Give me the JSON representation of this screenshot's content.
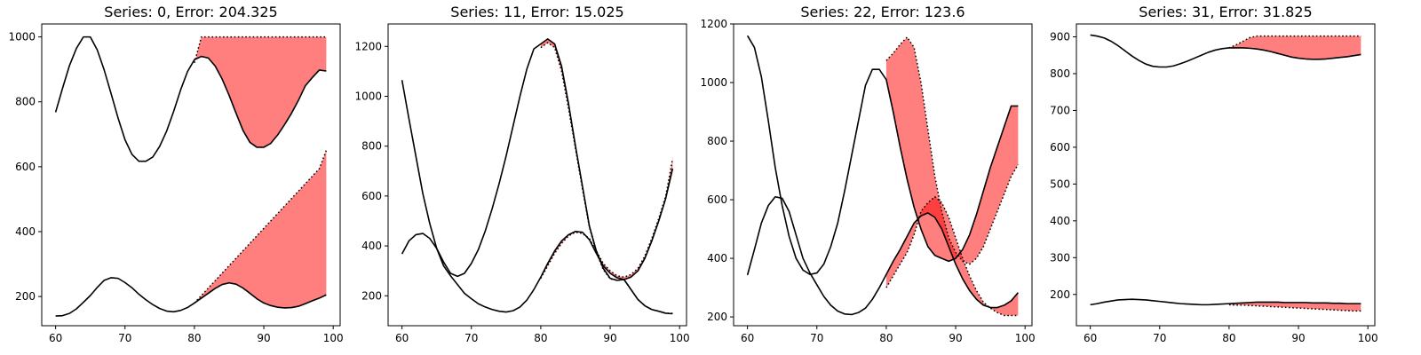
{
  "chart_data": [
    {
      "type": "line",
      "title": "Series: 0, Error: 204.325",
      "xlim": [
        58,
        101
      ],
      "ylim": [
        110,
        1040
      ],
      "xticks": [
        60,
        70,
        80,
        90,
        100
      ],
      "yticks": [
        200,
        400,
        600,
        800,
        1000
      ],
      "series": [
        {
          "style": "solid",
          "x": [
            60,
            61,
            62,
            63,
            64,
            65,
            66,
            67,
            68,
            69,
            70,
            71,
            72,
            73,
            74,
            75,
            76,
            77,
            78,
            79,
            80,
            81,
            82,
            83,
            84,
            85,
            86,
            87,
            88,
            89,
            90,
            91,
            92,
            93,
            94,
            95,
            96,
            97,
            98,
            99
          ],
          "y": [
            768,
            842,
            912,
            965,
            1000,
            1000,
            960,
            898,
            825,
            750,
            683,
            638,
            617,
            617,
            630,
            663,
            710,
            770,
            836,
            893,
            930,
            940,
            935,
            910,
            870,
            820,
            765,
            712,
            675,
            660,
            660,
            672,
            698,
            730,
            765,
            805,
            850,
            875,
            898,
            895
          ]
        },
        {
          "style": "dotted",
          "x": [
            80,
            81,
            82,
            83,
            84,
            85,
            86,
            87,
            88,
            89,
            90,
            91,
            92,
            93,
            94,
            95,
            96,
            97,
            98,
            99
          ],
          "y": [
            920,
            1000,
            1000,
            1000,
            1000,
            1000,
            1000,
            1000,
            1000,
            1000,
            1000,
            1000,
            1000,
            1000,
            1000,
            1000,
            1000,
            1000,
            1000,
            1000
          ]
        },
        {
          "style": "solid",
          "x": [
            60,
            61,
            62,
            63,
            64,
            65,
            66,
            67,
            68,
            69,
            70,
            71,
            72,
            73,
            74,
            75,
            76,
            77,
            78,
            79,
            80,
            81,
            82,
            83,
            84,
            85,
            86,
            87,
            88,
            89,
            90,
            91,
            92,
            93,
            94,
            95,
            96,
            97,
            98,
            99
          ],
          "y": [
            140,
            141,
            148,
            162,
            182,
            203,
            228,
            250,
            258,
            256,
            243,
            227,
            207,
            190,
            175,
            163,
            155,
            153,
            157,
            166,
            180,
            195,
            210,
            225,
            237,
            242,
            238,
            226,
            210,
            193,
            180,
            172,
            167,
            165,
            166,
            170,
            178,
            187,
            195,
            205
          ]
        },
        {
          "style": "dotted",
          "x": [
            80,
            81,
            82,
            83,
            84,
            85,
            86,
            87,
            88,
            89,
            90,
            91,
            92,
            93,
            94,
            95,
            96,
            97,
            98,
            99
          ],
          "y": [
            180,
            203,
            226,
            249,
            272,
            295,
            318,
            341,
            364,
            387,
            410,
            433,
            456,
            479,
            502,
            525,
            548,
            571,
            594,
            650
          ]
        }
      ],
      "fills": [
        [
          0,
          1
        ],
        [
          2,
          3
        ]
      ]
    },
    {
      "type": "line",
      "title": "Series: 11, Error: 15.025",
      "xlim": [
        58,
        101
      ],
      "ylim": [
        80,
        1290
      ],
      "xticks": [
        60,
        70,
        80,
        90,
        100
      ],
      "yticks": [
        200,
        400,
        600,
        800,
        1000,
        1200
      ],
      "series": [
        {
          "style": "solid",
          "x": [
            60,
            61,
            62,
            63,
            64,
            65,
            66,
            67,
            68,
            69,
            70,
            71,
            72,
            73,
            74,
            75,
            76,
            77,
            78,
            79,
            80,
            81,
            82,
            83,
            84,
            85,
            86,
            87,
            88,
            89,
            90,
            91,
            92,
            93,
            94,
            95,
            96,
            97,
            98,
            99
          ],
          "y": [
            1065,
            910,
            760,
            610,
            490,
            390,
            320,
            280,
            245,
            210,
            188,
            168,
            155,
            145,
            138,
            135,
            140,
            155,
            183,
            225,
            275,
            330,
            380,
            420,
            445,
            458,
            455,
            425,
            370,
            320,
            290,
            272,
            265,
            275,
            300,
            350,
            420,
            500,
            590,
            710
          ]
        },
        {
          "style": "dotted",
          "x": [
            80,
            81,
            82,
            83,
            84,
            85,
            86,
            87,
            88,
            89,
            90,
            91,
            92,
            93,
            94,
            95,
            96,
            97,
            98,
            99
          ],
          "y": [
            270,
            320,
            370,
            410,
            440,
            455,
            450,
            430,
            380,
            330,
            300,
            280,
            275,
            285,
            310,
            360,
            430,
            510,
            600,
            750
          ]
        },
        {
          "style": "solid",
          "x": [
            60,
            61,
            62,
            63,
            64,
            65,
            66,
            67,
            68,
            69,
            70,
            71,
            72,
            73,
            74,
            75,
            76,
            77,
            78,
            79,
            80,
            81,
            82,
            83,
            84,
            85,
            86,
            87,
            88,
            89,
            90,
            91,
            92,
            93,
            94,
            95,
            96,
            97,
            98,
            99
          ],
          "y": [
            368,
            420,
            445,
            450,
            430,
            390,
            335,
            290,
            278,
            290,
            330,
            385,
            460,
            550,
            650,
            760,
            880,
            1000,
            1110,
            1190,
            1210,
            1230,
            1210,
            1120,
            970,
            800,
            640,
            480,
            380,
            310,
            270,
            262,
            265,
            225,
            185,
            160,
            145,
            138,
            130,
            128
          ]
        },
        {
          "style": "dotted",
          "x": [
            80,
            81,
            82,
            83,
            84,
            85,
            86,
            87,
            88,
            89,
            90,
            91,
            92,
            93,
            94,
            95,
            96,
            97,
            98,
            99
          ],
          "y": [
            1195,
            1215,
            1195,
            1100,
            950,
            790,
            630,
            475,
            375,
            305,
            268,
            262,
            265,
            225,
            185,
            160,
            145,
            138,
            130,
            130
          ]
        }
      ],
      "fills": [
        [
          0,
          1
        ],
        [
          2,
          3
        ]
      ]
    },
    {
      "type": "line",
      "title": "Series: 22, Error: 123.6",
      "xlim": [
        58,
        101
      ],
      "ylim": [
        170,
        1200
      ],
      "xticks": [
        60,
        70,
        80,
        90,
        100
      ],
      "yticks": [
        200,
        400,
        600,
        800,
        1000,
        1200
      ],
      "series": [
        {
          "style": "solid",
          "x": [
            60,
            61,
            62,
            63,
            64,
            65,
            66,
            67,
            68,
            69,
            70,
            71,
            72,
            73,
            74,
            75,
            76,
            77,
            78,
            79,
            80,
            81,
            82,
            83,
            84,
            85,
            86,
            87,
            88,
            89,
            90,
            91,
            92,
            93,
            94,
            95,
            96,
            97,
            98,
            99
          ],
          "y": [
            1160,
            1120,
            1020,
            870,
            710,
            580,
            475,
            400,
            360,
            345,
            350,
            380,
            440,
            520,
            630,
            750,
            870,
            990,
            1045,
            1045,
            1010,
            900,
            780,
            670,
            575,
            500,
            440,
            410,
            400,
            390,
            400,
            430,
            480,
            550,
            630,
            710,
            780,
            850,
            920,
            920
          ]
        },
        {
          "style": "dotted",
          "x": [
            80,
            81,
            82,
            83,
            84,
            85,
            86,
            87,
            88,
            89,
            90,
            91,
            92,
            93,
            94,
            95,
            96,
            97,
            98,
            99
          ],
          "y": [
            1075,
            1100,
            1130,
            1155,
            1120,
            1000,
            840,
            680,
            560,
            470,
            420,
            390,
            380,
            400,
            440,
            500,
            560,
            620,
            680,
            720
          ]
        },
        {
          "style": "solid",
          "x": [
            60,
            61,
            62,
            63,
            64,
            65,
            66,
            67,
            68,
            69,
            70,
            71,
            72,
            73,
            74,
            75,
            76,
            77,
            78,
            79,
            80,
            81,
            82,
            83,
            84,
            85,
            86,
            87,
            88,
            89,
            90,
            91,
            92,
            93,
            94,
            95,
            96,
            97,
            98,
            99
          ],
          "y": [
            343,
            430,
            520,
            580,
            610,
            605,
            560,
            480,
            400,
            350,
            310,
            270,
            240,
            220,
            210,
            208,
            215,
            230,
            260,
            300,
            345,
            390,
            430,
            475,
            520,
            545,
            555,
            540,
            500,
            440,
            380,
            330,
            290,
            260,
            240,
            232,
            232,
            240,
            255,
            283
          ]
        },
        {
          "style": "dotted",
          "x": [
            80,
            81,
            82,
            83,
            84,
            85,
            86,
            87,
            88,
            89,
            90,
            91,
            92,
            93,
            94,
            95,
            96,
            97,
            98,
            99
          ],
          "y": [
            300,
            340,
            380,
            420,
            480,
            560,
            590,
            610,
            590,
            540,
            470,
            400,
            340,
            290,
            250,
            230,
            215,
            205,
            205,
            205
          ]
        }
      ],
      "fills": [
        [
          0,
          1
        ],
        [
          2,
          3
        ]
      ]
    },
    {
      "type": "line",
      "title": "Series: 31, Error: 31.825",
      "xlim": [
        58,
        101
      ],
      "ylim": [
        115,
        935
      ],
      "xticks": [
        60,
        70,
        80,
        90,
        100
      ],
      "yticks": [
        200,
        300,
        400,
        500,
        600,
        700,
        800,
        900
      ],
      "series": [
        {
          "style": "solid",
          "x": [
            60,
            61,
            62,
            63,
            64,
            65,
            66,
            67,
            68,
            69,
            70,
            71,
            72,
            73,
            74,
            75,
            76,
            77,
            78,
            79,
            80,
            81,
            82,
            83,
            84,
            85,
            86,
            87,
            88,
            89,
            90,
            91,
            92,
            93,
            94,
            95,
            96,
            97,
            98,
            99
          ],
          "y": [
            905,
            902,
            897,
            888,
            876,
            862,
            848,
            836,
            826,
            820,
            818,
            818,
            821,
            827,
            834,
            842,
            850,
            858,
            864,
            868,
            870,
            870,
            870,
            869,
            867,
            864,
            860,
            855,
            850,
            845,
            842,
            840,
            839,
            839,
            840,
            842,
            844,
            846,
            849,
            852
          ]
        },
        {
          "style": "dotted",
          "x": [
            80,
            81,
            82,
            83,
            84,
            85,
            86,
            87,
            88,
            89,
            90,
            91,
            92,
            93,
            94,
            95,
            96,
            97,
            98,
            99
          ],
          "y": [
            870,
            878,
            888,
            898,
            902,
            902,
            902,
            902,
            902,
            902,
            902,
            902,
            902,
            902,
            902,
            902,
            902,
            902,
            902,
            902
          ]
        },
        {
          "style": "solid",
          "x": [
            60,
            61,
            62,
            63,
            64,
            65,
            66,
            67,
            68,
            69,
            70,
            71,
            72,
            73,
            74,
            75,
            76,
            77,
            78,
            79,
            80,
            81,
            82,
            83,
            84,
            85,
            86,
            87,
            88,
            89,
            90,
            91,
            92,
            93,
            94,
            95,
            96,
            97,
            98,
            99
          ],
          "y": [
            172,
            175,
            179,
            182,
            185,
            186,
            187,
            186,
            185,
            183,
            181,
            179,
            177,
            175,
            174,
            173,
            172,
            172,
            173,
            174,
            175,
            176,
            177,
            178,
            179,
            179,
            179,
            179,
            178,
            178,
            178,
            178,
            177,
            177,
            177,
            176,
            176,
            175,
            175,
            175
          ]
        },
        {
          "style": "dotted",
          "x": [
            80,
            81,
            82,
            83,
            84,
            85,
            86,
            87,
            88,
            89,
            90,
            91,
            92,
            93,
            94,
            95,
            96,
            97,
            98,
            99
          ],
          "y": [
            172,
            171,
            171,
            170,
            169,
            168,
            167,
            166,
            165,
            164,
            163,
            162,
            161,
            160,
            159,
            158,
            157,
            156,
            155,
            155
          ]
        }
      ],
      "fills": [
        [
          0,
          1
        ],
        [
          2,
          3
        ]
      ]
    }
  ]
}
